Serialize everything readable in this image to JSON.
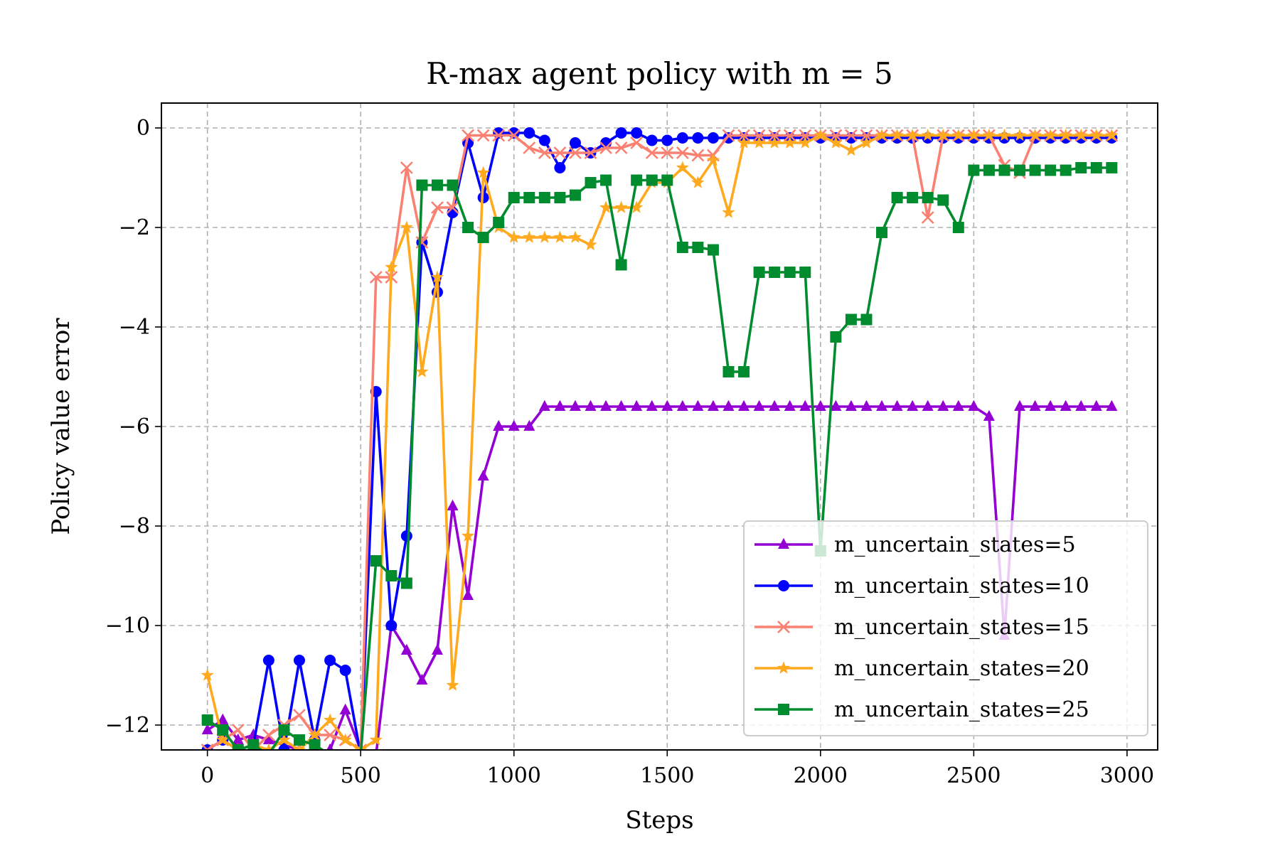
{
  "chart_data": {
    "type": "line",
    "title": "R-max agent policy with m = 5",
    "xlabel": "Steps",
    "ylabel": "Policy value error",
    "xlim": [
      -150,
      3100
    ],
    "ylim": [
      -12.5,
      0.5
    ],
    "xticks": [
      0,
      500,
      1000,
      1500,
      2000,
      2500,
      3000
    ],
    "xtick_labels": [
      "0",
      "500",
      "1000",
      "1500",
      "2000",
      "2500",
      "3000"
    ],
    "yticks": [
      0,
      -2,
      -4,
      -6,
      -8,
      -10,
      -12
    ],
    "ytick_labels": [
      "0",
      "−2",
      "−4",
      "−6",
      "−8",
      "−10",
      "−12"
    ],
    "grid": true,
    "legend_position": "lower-right",
    "x": [
      0,
      50,
      100,
      150,
      200,
      250,
      300,
      350,
      400,
      450,
      500,
      550,
      600,
      650,
      700,
      750,
      800,
      850,
      900,
      950,
      1000,
      1050,
      1100,
      1150,
      1200,
      1250,
      1300,
      1350,
      1400,
      1450,
      1500,
      1550,
      1600,
      1650,
      1700,
      1750,
      1800,
      1850,
      1900,
      1950,
      2000,
      2050,
      2100,
      2150,
      2200,
      2250,
      2300,
      2350,
      2400,
      2450,
      2500,
      2550,
      2600,
      2650,
      2700,
      2750,
      2800,
      2850,
      2900,
      2950
    ],
    "series": [
      {
        "name": "m_uncertain_states=5",
        "color": "#9400d3",
        "marker": "triangle",
        "values": [
          -12.1,
          -11.9,
          -12.3,
          -12.2,
          -12.3,
          -12.4,
          -12.5,
          -12.6,
          -12.5,
          -11.7,
          -12.5,
          -12.6,
          -10.0,
          -10.5,
          -11.1,
          -10.5,
          -7.6,
          -9.4,
          -7.0,
          -6.0,
          -6.0,
          -6.0,
          -5.6,
          -5.6,
          -5.6,
          -5.6,
          -5.6,
          -5.6,
          -5.6,
          -5.6,
          -5.6,
          -5.6,
          -5.6,
          -5.6,
          -5.6,
          -5.6,
          -5.6,
          -5.6,
          -5.6,
          -5.6,
          -5.6,
          -5.6,
          -5.6,
          -5.6,
          -5.6,
          -5.6,
          -5.6,
          -5.6,
          -5.6,
          -5.6,
          -5.6,
          -5.8,
          -10.2,
          -5.6,
          -5.6,
          -5.6,
          -5.6,
          -5.6,
          -5.6,
          -5.6
        ]
      },
      {
        "name": "m_uncertain_states=10",
        "color": "#0000ff",
        "marker": "circle",
        "values": [
          -12.5,
          -12.3,
          -12.5,
          -12.4,
          -10.7,
          -12.5,
          -10.7,
          -12.3,
          -10.7,
          -10.9,
          -12.6,
          -5.3,
          -10.0,
          -8.2,
          -2.3,
          -3.3,
          -1.7,
          -0.3,
          -1.4,
          -0.1,
          -0.1,
          -0.1,
          -0.25,
          -0.8,
          -0.3,
          -0.5,
          -0.3,
          -0.1,
          -0.1,
          -0.25,
          -0.25,
          -0.2,
          -0.2,
          -0.2,
          -0.2,
          -0.2,
          -0.2,
          -0.2,
          -0.2,
          -0.2,
          -0.2,
          -0.2,
          -0.2,
          -0.2,
          -0.2,
          -0.2,
          -0.2,
          -0.2,
          -0.2,
          -0.2,
          -0.2,
          -0.2,
          -0.2,
          -0.2,
          -0.2,
          -0.2,
          -0.2,
          -0.2,
          -0.2,
          -0.2
        ]
      },
      {
        "name": "m_uncertain_states=15",
        "color": "#fa8072",
        "marker": "x",
        "values": [
          -12.5,
          -12.3,
          -12.1,
          -12.5,
          -12.2,
          -12.0,
          -11.8,
          -12.2,
          -12.2,
          -12.3,
          -12.5,
          -3.0,
          -3.0,
          -0.8,
          -2.3,
          -1.6,
          -1.6,
          -0.15,
          -0.15,
          -0.15,
          -0.15,
          -0.4,
          -0.5,
          -0.5,
          -0.5,
          -0.5,
          -0.4,
          -0.4,
          -0.3,
          -0.5,
          -0.5,
          -0.5,
          -0.55,
          -0.55,
          -0.15,
          -0.15,
          -0.15,
          -0.15,
          -0.15,
          -0.15,
          -0.15,
          -0.15,
          -0.15,
          -0.15,
          -0.15,
          -0.15,
          -0.15,
          -1.8,
          -0.15,
          -0.15,
          -0.15,
          -0.15,
          -0.75,
          -0.9,
          -0.15,
          -0.15,
          -0.15,
          -0.15,
          -0.15,
          -0.15
        ]
      },
      {
        "name": "m_uncertain_states=20",
        "color": "#ffa91f",
        "marker": "star",
        "values": [
          -11.0,
          -12.3,
          -12.5,
          -12.4,
          -12.5,
          -12.3,
          -12.5,
          -12.2,
          -11.9,
          -12.3,
          -12.5,
          -12.3,
          -2.8,
          -2.0,
          -4.9,
          -3.0,
          -11.2,
          -8.2,
          -0.9,
          -2.0,
          -2.2,
          -2.2,
          -2.2,
          -2.2,
          -2.2,
          -2.35,
          -1.6,
          -1.6,
          -1.6,
          -1.1,
          -1.1,
          -0.8,
          -1.1,
          -0.65,
          -1.7,
          -0.3,
          -0.3,
          -0.3,
          -0.3,
          -0.3,
          -0.15,
          -0.3,
          -0.45,
          -0.3,
          -0.15,
          -0.15,
          -0.15,
          -0.15,
          -0.15,
          -0.15,
          -0.15,
          -0.15,
          -0.15,
          -0.15,
          -0.15,
          -0.15,
          -0.15,
          -0.15,
          -0.15,
          -0.15
        ]
      },
      {
        "name": "m_uncertain_states=25",
        "color": "#008c2e",
        "marker": "square",
        "values": [
          -11.9,
          -12.1,
          -12.5,
          -12.4,
          -12.6,
          -12.1,
          -12.3,
          -12.4,
          -12.6,
          -12.6,
          -12.6,
          -8.7,
          -9.0,
          -9.15,
          -1.15,
          -1.15,
          -1.15,
          -2.0,
          -2.2,
          -1.9,
          -1.4,
          -1.4,
          -1.4,
          -1.4,
          -1.35,
          -1.1,
          -1.05,
          -2.75,
          -1.05,
          -1.05,
          -1.05,
          -2.4,
          -2.4,
          -2.45,
          -4.9,
          -4.9,
          -2.9,
          -2.9,
          -2.9,
          -2.9,
          -8.5,
          -4.2,
          -3.85,
          -3.85,
          -2.1,
          -1.4,
          -1.4,
          -1.4,
          -1.45,
          -2.0,
          -0.85,
          -0.85,
          -0.85,
          -0.85,
          -0.85,
          -0.85,
          -0.85,
          -0.8,
          -0.8,
          -0.8
        ]
      }
    ]
  }
}
